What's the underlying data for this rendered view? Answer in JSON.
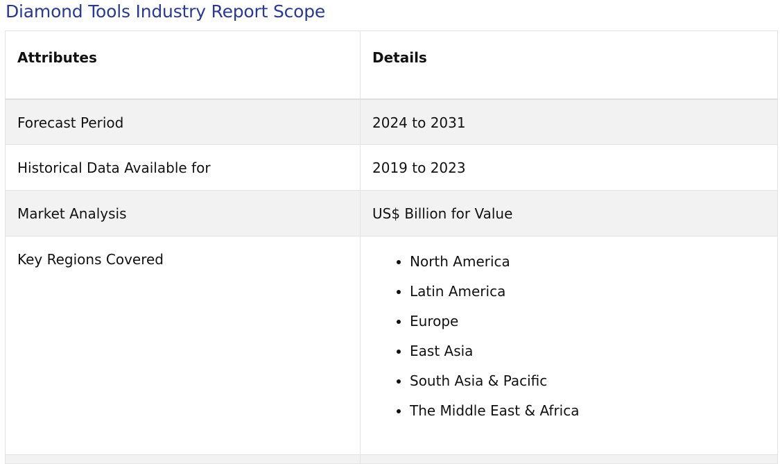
{
  "title": "Diamond Tools Industry Report Scope",
  "table": {
    "headers": [
      "Attributes",
      "Details"
    ],
    "rows": [
      {
        "attribute": "Forecast Period",
        "detail": "2024 to 2031"
      },
      {
        "attribute": "Historical Data Available for",
        "detail": "2019 to 2023"
      },
      {
        "attribute": "Market Analysis",
        "detail": "US$ Billion for Value"
      }
    ],
    "regions": {
      "attribute": "Key Regions Covered",
      "items": [
        "North America",
        "Latin America",
        "Europe",
        "East Asia",
        "South Asia & Pacific",
        "The Middle East & Africa"
      ]
    }
  },
  "colors": {
    "title": "#2b3a8c",
    "row_shade": "#f2f2f2",
    "border": "#e3e3e3"
  }
}
